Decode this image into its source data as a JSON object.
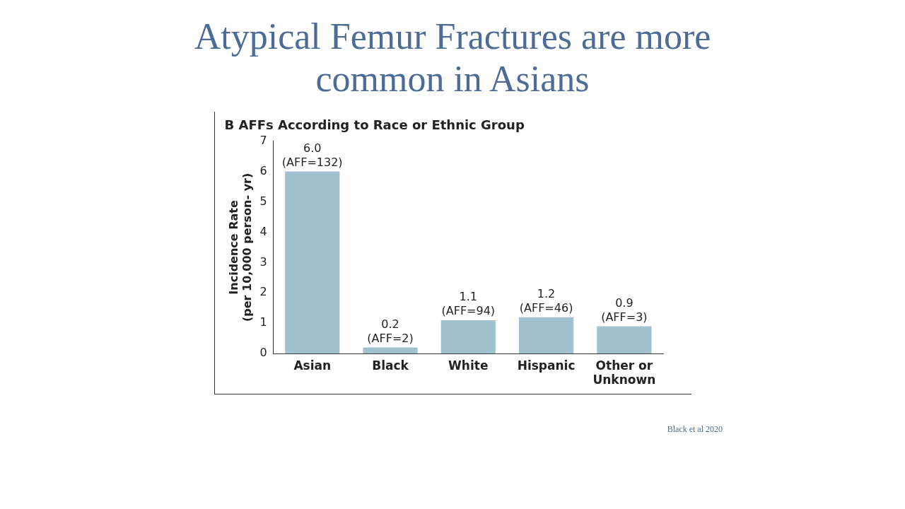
{
  "chart_data": {
    "type": "bar",
    "title": "Atypical Femur Fractures are more common in Asians",
    "subtitle": "B AFFs According to Race or Ethnic Group",
    "categories": [
      "Asian",
      "Black",
      "White",
      "Hispanic",
      "Other or Unknown"
    ],
    "values": [
      6.0,
      0.2,
      1.1,
      1.2,
      0.9
    ],
    "color": "#a0c1cd",
    "value_labels": [
      "6.0\n(AFF=132)",
      "0.2\n(AFF=2)",
      "1.1\n(AFF=94)",
      "1.2\n(AFF=46)",
      "0.9\n(AFF=3)"
    ],
    "ylabel": "Incidence Rate (per 10,000 person- yr)",
    "ylim": [
      0,
      7
    ],
    "yticks": [
      0,
      1,
      2,
      3,
      4,
      5,
      6,
      7
    ],
    "grid": false,
    "legend": false,
    "annotations": [
      "Black et al 2020"
    ]
  }
}
